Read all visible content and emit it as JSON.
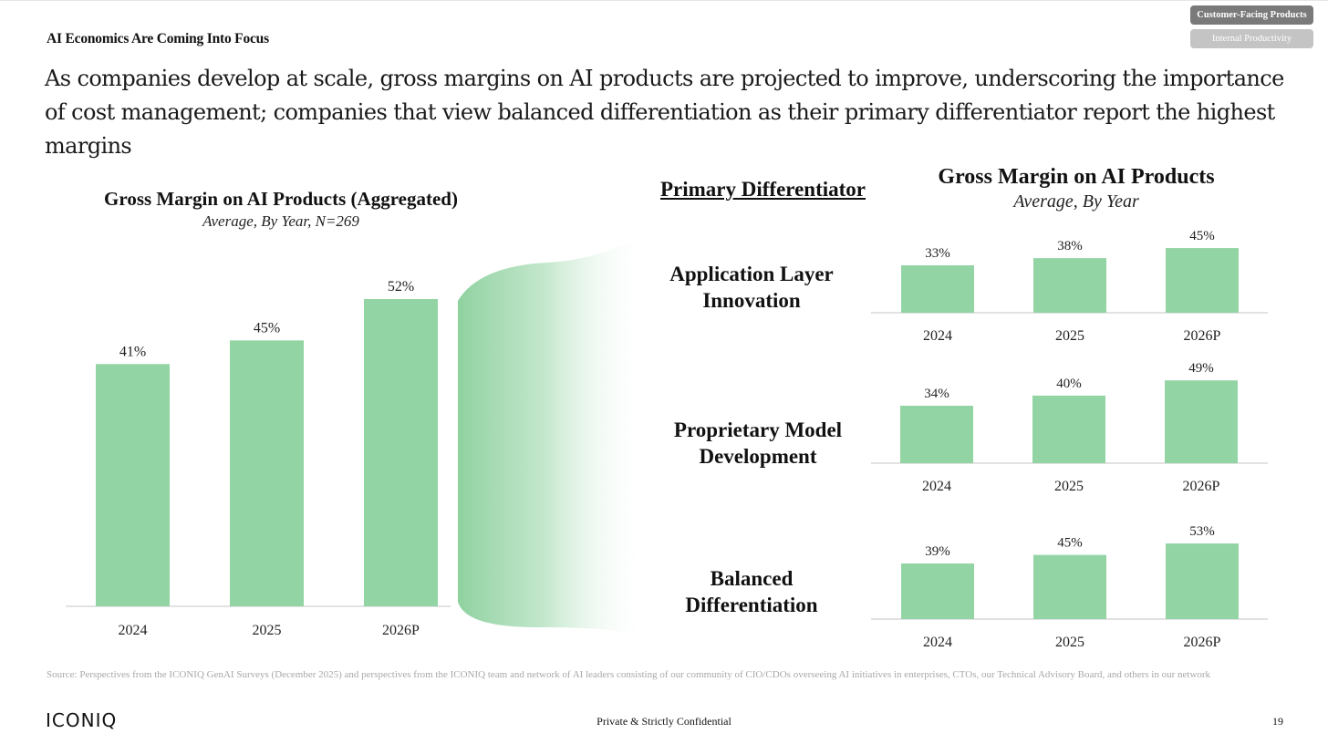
{
  "tags": {
    "customer_facing": "Customer-Facing Products",
    "internal": "Internal Productivity"
  },
  "section_title": "AI Economics Are Coming Into Focus",
  "headline": "As companies develop at scale, gross margins on AI products are projected to improve, underscoring the importance of cost management; companies that view balanced differentiation as their primary differentiator report the highest margins",
  "aggregated": {
    "title": "Gross Margin on AI Products (Aggregated)",
    "subtitle": "Average, By Year, N=269"
  },
  "differentiators": {
    "heading": "Primary Differentiator",
    "title": "Gross Margin on AI Products",
    "subtitle": "Average, By Year"
  },
  "colors": {
    "bar": "#92d4a3",
    "axis": "#d9d9d9",
    "fade_start": "#8fd19f"
  },
  "chart_data": [
    {
      "type": "bar",
      "title": "Gross Margin on AI Products (Aggregated)",
      "subtitle": "Average, By Year, N=269",
      "categories": [
        "2024",
        "2025",
        "2026P"
      ],
      "values": [
        41,
        45,
        52
      ],
      "data_labels": [
        "41%",
        "45%",
        "52%"
      ],
      "ylim": [
        0,
        52
      ]
    },
    {
      "type": "bar",
      "title": "Application Layer Innovation",
      "categories": [
        "2024",
        "2025",
        "2026P"
      ],
      "values": [
        33,
        38,
        45
      ],
      "data_labels": [
        "33%",
        "38%",
        "45%"
      ]
    },
    {
      "type": "bar",
      "title": "Proprietary Model Development",
      "categories": [
        "2024",
        "2025",
        "2026P"
      ],
      "values": [
        34,
        40,
        49
      ],
      "data_labels": [
        "34%",
        "40%",
        "49%"
      ]
    },
    {
      "type": "bar",
      "title": "Balanced Differentiation",
      "categories": [
        "2024",
        "2025",
        "2026P"
      ],
      "values": [
        39,
        45,
        53
      ],
      "data_labels": [
        "39%",
        "45%",
        "53%"
      ]
    }
  ],
  "row_labels": [
    [
      "Application Layer",
      "Innovation"
    ],
    [
      "Proprietary Model",
      "Development"
    ],
    [
      "Balanced",
      "Differentiation"
    ]
  ],
  "footer": {
    "source": "Source: Perspectives from the ICONIQ GenAI Surveys (December 2025) and perspectives from the ICONIQ team and network of AI leaders consisting of our community of CIO/CDOs overseeing AI initiatives in enterprises, CTOs, our Technical Advisory Board, and others in our network",
    "logo": "ICONIQ",
    "confidential": "Private & Strictly Confidential",
    "page_number": "19"
  }
}
